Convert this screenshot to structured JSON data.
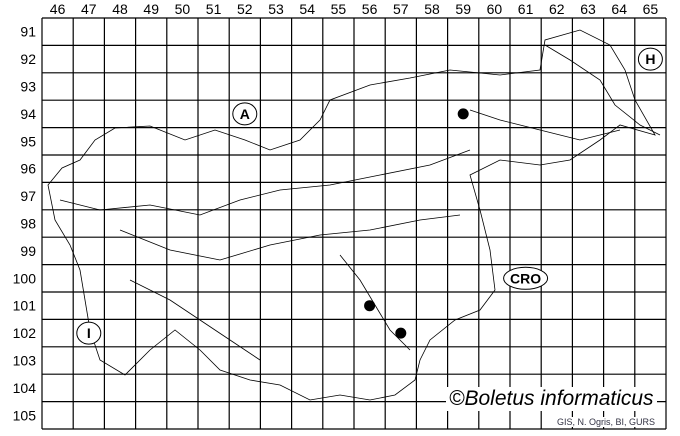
{
  "map": {
    "columns": [
      "46",
      "47",
      "48",
      "49",
      "50",
      "51",
      "52",
      "53",
      "54",
      "55",
      "56",
      "57",
      "58",
      "59",
      "60",
      "61",
      "62",
      "63",
      "64",
      "65"
    ],
    "rows": [
      "91",
      "92",
      "93",
      "94",
      "95",
      "96",
      "97",
      "98",
      "99",
      "100",
      "101",
      "102",
      "103",
      "104",
      "105"
    ],
    "countries": [
      {
        "code": "A",
        "col": "52",
        "row": "94"
      },
      {
        "code": "H",
        "col": "65",
        "row": "92"
      },
      {
        "code": "CRO",
        "col": "61",
        "row": "100"
      },
      {
        "code": "I",
        "col": "47",
        "row": "102"
      }
    ],
    "records": [
      {
        "col": "59",
        "row": "94"
      },
      {
        "col": "56",
        "row": "101"
      },
      {
        "col": "57",
        "row": "102"
      }
    ],
    "dot_color": "#000000"
  },
  "copyright": "©Boletus informaticus",
  "credit": "GIS, N. Ogris, BI, GURS"
}
